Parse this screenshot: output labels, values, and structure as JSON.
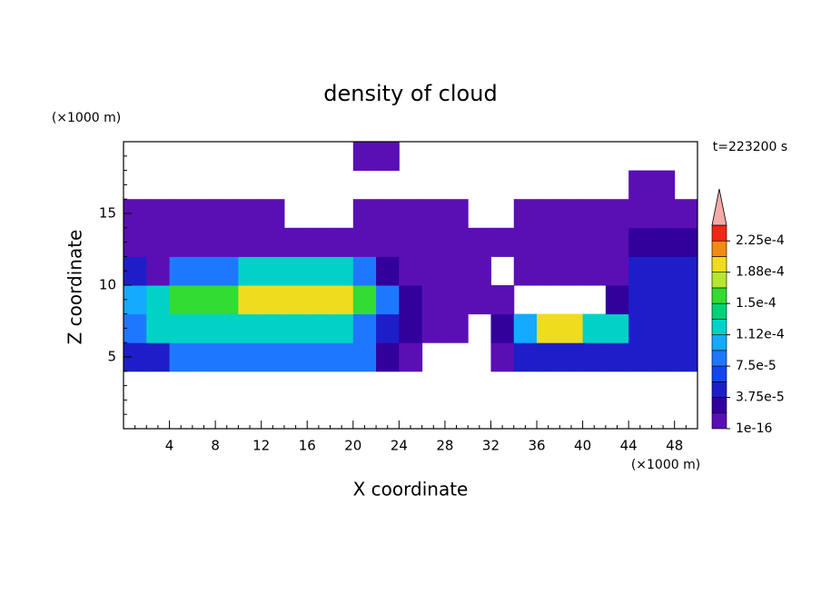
{
  "chart_data": {
    "type": "contour",
    "title": "density of cloud",
    "xlabel": "X coordinate",
    "ylabel": "Z coordinate",
    "xunit": "(×1000 m)",
    "yunit": "(×1000 m)",
    "time_label": "t=223200 s",
    "xlim": [
      0,
      50
    ],
    "ylim": [
      0,
      20
    ],
    "xticks": [
      4,
      8,
      12,
      16,
      20,
      24,
      28,
      32,
      36,
      40,
      44,
      48
    ],
    "yticks": [
      5,
      10,
      15
    ],
    "xminorticks": [
      1,
      2,
      3,
      5,
      6,
      7,
      9,
      10,
      11,
      13,
      14,
      15,
      17,
      18,
      19,
      21,
      22,
      23,
      25,
      26,
      27,
      29,
      30,
      31,
      33,
      34,
      35,
      37,
      38,
      39,
      41,
      42,
      43,
      45,
      46,
      47,
      49
    ],
    "yminorticks": [
      1,
      2,
      3,
      4,
      6,
      7,
      8,
      9,
      11,
      12,
      13,
      14,
      16,
      17,
      18,
      19
    ],
    "x_edges": [
      0,
      2,
      4,
      6,
      8,
      10,
      12,
      14,
      16,
      18,
      20,
      22,
      24,
      26,
      28,
      30,
      32,
      34,
      36,
      38,
      40,
      42,
      44,
      46,
      48,
      50
    ],
    "y_edges": [
      0,
      2,
      4,
      6,
      8,
      10,
      12,
      14,
      16,
      18,
      20
    ],
    "values": [
      [
        null,
        null,
        null,
        null,
        null,
        null,
        null,
        null,
        null,
        null,
        null,
        null,
        null,
        null,
        null,
        null,
        null,
        null,
        null,
        null,
        null,
        null,
        null,
        null,
        null
      ],
      [
        null,
        null,
        null,
        null,
        null,
        null,
        null,
        null,
        null,
        null,
        null,
        null,
        null,
        null,
        null,
        null,
        null,
        null,
        null,
        null,
        null,
        null,
        null,
        null,
        null
      ],
      [
        5e-05,
        5e-05,
        8e-05,
        8e-05,
        8e-05,
        8e-05,
        8e-05,
        8e-05,
        8e-05,
        8e-05,
        8e-05,
        3e-05,
        1e-05,
        null,
        null,
        null,
        1e-05,
        5e-05,
        5e-05,
        5e-05,
        5e-05,
        5e-05,
        5e-05,
        5e-05,
        5e-05
      ],
      [
        8e-05,
        0.00013,
        0.00013,
        0.00013,
        0.00013,
        0.00013,
        0.00013,
        0.00013,
        0.00013,
        0.00013,
        8e-05,
        5e-05,
        3e-05,
        1e-05,
        1e-05,
        null,
        3e-05,
        0.0001,
        0.00019,
        0.00019,
        0.00013,
        0.00013,
        5e-05,
        5e-05,
        5e-05
      ],
      [
        0.0001,
        0.00013,
        0.00016,
        0.00016,
        0.00016,
        0.00019,
        0.00019,
        0.00019,
        0.00019,
        0.00019,
        0.00016,
        8e-05,
        3e-05,
        1e-05,
        1e-05,
        1e-05,
        1e-05,
        null,
        null,
        null,
        null,
        3e-05,
        5e-05,
        5e-05,
        5e-05
      ],
      [
        5e-05,
        1e-05,
        8e-05,
        8e-05,
        8e-05,
        0.00013,
        0.00013,
        0.00013,
        0.00013,
        0.00013,
        8e-05,
        3e-05,
        1e-05,
        1e-05,
        1e-05,
        1e-05,
        null,
        1e-05,
        1e-05,
        1e-05,
        1e-05,
        1e-05,
        5e-05,
        5e-05,
        5e-05
      ],
      [
        1e-05,
        1e-05,
        1e-05,
        1e-05,
        1e-05,
        1e-05,
        1e-05,
        1e-05,
        1e-05,
        1e-05,
        1e-05,
        1e-05,
        1e-05,
        1e-05,
        1e-05,
        1e-05,
        1e-05,
        1e-05,
        1e-05,
        1e-05,
        1e-05,
        1e-05,
        3e-05,
        3e-05,
        3e-05
      ],
      [
        1e-05,
        1e-05,
        1e-05,
        1e-05,
        1e-05,
        1e-05,
        1e-05,
        null,
        null,
        null,
        1e-05,
        1e-05,
        1e-05,
        1e-05,
        1e-05,
        null,
        null,
        1e-05,
        1e-05,
        1e-05,
        1e-05,
        1e-05,
        1e-05,
        1e-05,
        1e-05
      ],
      [
        null,
        null,
        null,
        null,
        null,
        null,
        null,
        null,
        null,
        null,
        null,
        null,
        null,
        null,
        null,
        null,
        null,
        null,
        null,
        null,
        null,
        null,
        1e-05,
        1e-05,
        null
      ],
      [
        null,
        null,
        null,
        null,
        null,
        null,
        null,
        null,
        null,
        null,
        1e-05,
        1e-05,
        null,
        null,
        null,
        null,
        null,
        null,
        null,
        null,
        null,
        null,
        null,
        null,
        null
      ]
    ],
    "levels": [
      1e-16,
      1.875e-05,
      3.75e-05,
      5.625e-05,
      7.5e-05,
      9.375e-05,
      0.0001125,
      0.00013125,
      0.00015,
      0.00016875,
      0.0001875,
      0.00020625,
      0.000225,
      0.00024375
    ],
    "colors": [
      "#5a0fb4",
      "#32009b",
      "#1e1ec8",
      "#1446f0",
      "#1e78ff",
      "#14aaff",
      "#00d2c8",
      "#00d278",
      "#32dc32",
      "#b4e632",
      "#f0dc1e",
      "#f08c14",
      "#f02814"
    ],
    "extend_color": "#f5aaaa",
    "colorbar_ticks": [
      1e-16,
      {
        "value": 3.75e-05,
        "label": "3.75e-5"
      },
      {
        "value": 7.5e-05,
        "label": "7.5e-5"
      },
      {
        "value": 0.0001125,
        "label": "1.12e-4"
      },
      {
        "value": 0.00015,
        "label": "1.5e-4"
      },
      {
        "value": 0.0001875,
        "label": "1.88e-4"
      },
      {
        "value": 0.000225,
        "label": "2.25e-4"
      }
    ]
  }
}
